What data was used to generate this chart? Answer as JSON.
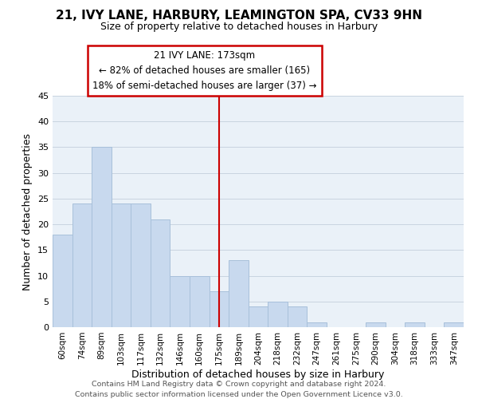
{
  "title": "21, IVY LANE, HARBURY, LEAMINGTON SPA, CV33 9HN",
  "subtitle": "Size of property relative to detached houses in Harbury",
  "xlabel": "Distribution of detached houses by size in Harbury",
  "ylabel": "Number of detached properties",
  "bar_color": "#c8d9ee",
  "bar_edge_color": "#a8c0da",
  "background_color": "#ffffff",
  "plot_bg_color": "#eaf1f8",
  "grid_color": "#c8d4e0",
  "bin_labels": [
    "60sqm",
    "74sqm",
    "89sqm",
    "103sqm",
    "117sqm",
    "132sqm",
    "146sqm",
    "160sqm",
    "175sqm",
    "189sqm",
    "204sqm",
    "218sqm",
    "232sqm",
    "247sqm",
    "261sqm",
    "275sqm",
    "290sqm",
    "304sqm",
    "318sqm",
    "333sqm",
    "347sqm"
  ],
  "bar_heights": [
    18,
    24,
    35,
    24,
    24,
    21,
    10,
    10,
    7,
    13,
    4,
    5,
    4,
    1,
    0,
    0,
    1,
    0,
    1,
    0,
    1
  ],
  "ylim": [
    0,
    45
  ],
  "yticks": [
    0,
    5,
    10,
    15,
    20,
    25,
    30,
    35,
    40,
    45
  ],
  "property_line_x": 8,
  "annotation_title": "21 IVY LANE: 173sqm",
  "annotation_line1": "← 82% of detached houses are smaller (165)",
  "annotation_line2": "18% of semi-detached houses are larger (37) →",
  "annotation_box_color": "#ffffff",
  "annotation_border_color": "#cc0000",
  "vline_color": "#cc0000",
  "footer1": "Contains HM Land Registry data © Crown copyright and database right 2024.",
  "footer2": "Contains public sector information licensed under the Open Government Licence v3.0."
}
